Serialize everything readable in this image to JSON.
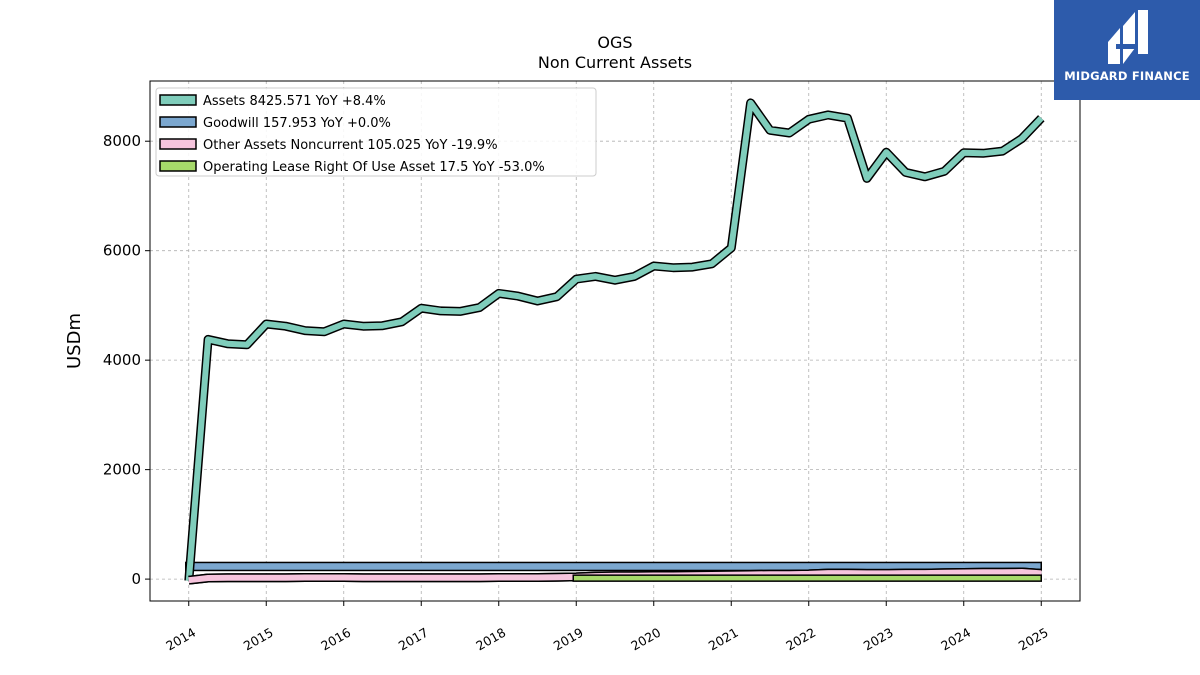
{
  "chart_data": {
    "type": "line",
    "title": "OGS",
    "subtitle": "Non Current  Assets",
    "ylabel": "USDm",
    "xlabel": "",
    "xlim": [
      2013.5,
      2025.5
    ],
    "ylim": [
      -400,
      9100
    ],
    "yticks": [
      0,
      2000,
      4000,
      6000,
      8000
    ],
    "xticks": [
      "2014",
      "2015",
      "2016",
      "2017",
      "2018",
      "2019",
      "2020",
      "2021",
      "2022",
      "2023",
      "2024",
      "2025"
    ],
    "grid": true,
    "legend_position": "top-left",
    "series": [
      {
        "name": "Assets",
        "legend": "Assets  8425.571 YoY +8.4%",
        "color": "#7fcdbb",
        "x": [
          2014.0,
          2014.25,
          2014.5,
          2014.75,
          2015.0,
          2015.25,
          2015.5,
          2015.75,
          2016.0,
          2016.25,
          2016.5,
          2016.75,
          2017.0,
          2017.25,
          2017.5,
          2017.75,
          2018.0,
          2018.25,
          2018.5,
          2018.75,
          2019.0,
          2019.25,
          2019.5,
          2019.75,
          2020.0,
          2020.25,
          2020.5,
          2020.75,
          2021.0,
          2021.25,
          2021.5,
          2021.75,
          2022.0,
          2022.25,
          2022.5,
          2022.75,
          2023.0,
          2023.25,
          2023.5,
          2023.75,
          2024.0,
          2024.25,
          2024.5,
          2024.75,
          2025.0
        ],
        "values": [
          -30,
          4380,
          4300,
          4280,
          4660,
          4620,
          4540,
          4520,
          4660,
          4620,
          4630,
          4700,
          4950,
          4900,
          4890,
          4960,
          5220,
          5170,
          5080,
          5160,
          5480,
          5530,
          5460,
          5530,
          5720,
          5690,
          5700,
          5760,
          6050,
          8700,
          8200,
          8150,
          8400,
          8480,
          8420,
          7320,
          7800,
          7430,
          7350,
          7450,
          7790,
          7780,
          7820,
          8050,
          8420
        ]
      },
      {
        "name": "Goodwill",
        "legend": "Goodwill  157.953 YoY +0.0%",
        "color": "#7ba7cf",
        "x": [
          2014.0,
          2025.0
        ],
        "values": [
          158,
          158
        ]
      },
      {
        "name": "Other Assets Noncurrent",
        "legend": "Other Assets Noncurrent  105.025 YoY -19.9%",
        "color": "#f6c4dd",
        "x": [
          2014.0,
          2014.25,
          2014.5,
          2014.75,
          2015.0,
          2015.25,
          2015.5,
          2015.75,
          2016.0,
          2016.25,
          2016.5,
          2016.75,
          2017.0,
          2017.25,
          2017.5,
          2017.75,
          2018.0,
          2018.25,
          2018.5,
          2018.75,
          2019.0,
          2019.25,
          2019.5,
          2019.75,
          2020.0,
          2020.25,
          2020.5,
          2020.75,
          2021.0,
          2021.25,
          2021.5,
          2021.75,
          2022.0,
          2022.25,
          2022.5,
          2022.75,
          2023.0,
          2023.25,
          2023.5,
          2023.75,
          2024.0,
          2024.25,
          2024.5,
          2024.75,
          2025.0
        ],
        "values": [
          -20,
          20,
          25,
          25,
          25,
          25,
          30,
          30,
          30,
          25,
          25,
          25,
          25,
          25,
          25,
          25,
          30,
          30,
          30,
          35,
          40,
          55,
          60,
          60,
          65,
          65,
          70,
          75,
          80,
          85,
          90,
          90,
          95,
          110,
          110,
          105,
          105,
          110,
          110,
          115,
          120,
          125,
          125,
          130,
          105
        ]
      },
      {
        "name": "Operating Lease Right Of Use Asset",
        "legend": "Operating Lease Right Of Use Asset  17.5 YoY -53.0%",
        "color": "#a6d96a",
        "x": [
          2019.0,
          2025.0
        ],
        "values": [
          17.5,
          17.5
        ]
      }
    ]
  },
  "logo": {
    "text": "MIDGARD FINANCE",
    "bg": "#2d5bab"
  }
}
